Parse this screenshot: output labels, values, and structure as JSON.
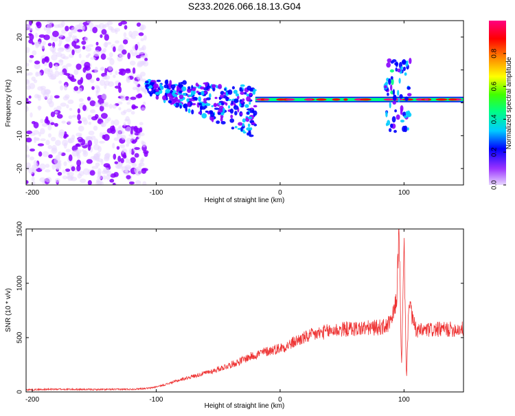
{
  "title": "S233.2026.066.18.13.G04",
  "chart_data": [
    {
      "type": "heatmap",
      "name": "spectrogram",
      "title": "S233.2026.066.18.13.G04",
      "xlabel": "Height of straight line (km)",
      "ylabel": "Frequency (Hz)",
      "xlim": [
        -205,
        148
      ],
      "ylim": [
        -25,
        25
      ],
      "xticks": [
        -200,
        -100,
        0,
        100
      ],
      "yticks": [
        -20,
        -10,
        0,
        10,
        20
      ],
      "colorbar": {
        "label": "Normalized spectral amplitude",
        "range": [
          0.0,
          1.0
        ],
        "ticks": [
          0.0,
          0.2,
          0.4,
          0.6,
          0.8
        ],
        "colormap": [
          "#e8d7ff",
          "#8800ff",
          "#0000ff",
          "#00ccff",
          "#00ff80",
          "#80ff00",
          "#ffff00",
          "#ff8000",
          "#ff0000",
          "#ff0080"
        ]
      },
      "features": {
        "noise_region_x": [
          -205,
          -108
        ],
        "transition_region_x": [
          -108,
          -20
        ],
        "steady_line_x": [
          -20,
          148
        ],
        "steady_line_frequency": 1.0,
        "disturbance_near_x": [
          85,
          105
        ]
      }
    },
    {
      "type": "line",
      "name": "snr",
      "xlabel": "Height of straight line (km)",
      "ylabel": "SNR (10 * v/v)",
      "xlim": [
        -205,
        148
      ],
      "ylim": [
        0,
        1500
      ],
      "xticks": [
        -200,
        -100,
        0,
        100
      ],
      "yticks": [
        0,
        500,
        1000,
        1500
      ],
      "series": [
        {
          "name": "SNR",
          "color": "#ee3333",
          "x": [
            -205,
            -180,
            -150,
            -120,
            -105,
            -95,
            -85,
            -75,
            -65,
            -55,
            -45,
            -35,
            -25,
            -15,
            -5,
            5,
            15,
            25,
            35,
            45,
            55,
            65,
            75,
            85,
            90,
            94,
            96,
            98,
            100,
            102,
            104,
            106,
            110,
            120,
            130,
            148
          ],
          "values": [
            20,
            25,
            22,
            25,
            35,
            60,
            95,
            130,
            160,
            190,
            230,
            270,
            320,
            360,
            390,
            420,
            480,
            520,
            550,
            570,
            580,
            585,
            590,
            600,
            650,
            850,
            1500,
            200,
            1350,
            100,
            900,
            700,
            560,
            570,
            575,
            580
          ]
        }
      ]
    }
  ]
}
